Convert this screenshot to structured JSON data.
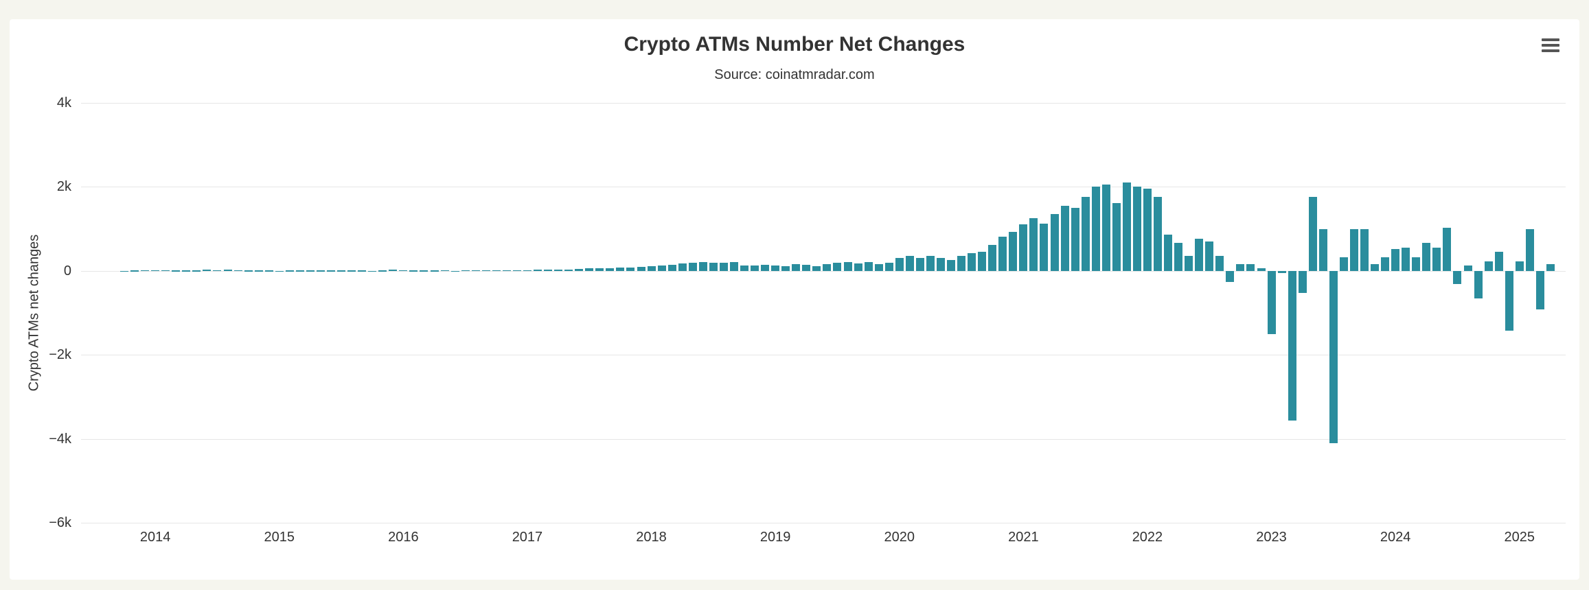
{
  "chart": {
    "title": "Crypto ATMs Number Net Changes",
    "subtitle": "Source: coinatmradar.com",
    "y_axis_title": "Crypto ATMs net changes"
  },
  "chart_data": {
    "type": "bar",
    "title": "Crypto ATMs Number Net Changes",
    "subtitle": "Source: coinatmradar.com",
    "xlabel": "",
    "ylabel": "Crypto ATMs net changes",
    "ylim": [
      -6000,
      4000
    ],
    "grid": true,
    "legend": "none",
    "colors": {
      "bar": "#2a8d9d",
      "grid": "#e6e6e6",
      "text": "#333333",
      "page_background": "#f5f5ee",
      "card_background": "#ffffff"
    },
    "y_ticks": [
      {
        "label": "4k",
        "value": 4000
      },
      {
        "label": "2k",
        "value": 2000
      },
      {
        "label": "0",
        "value": 0
      },
      {
        "label": "−2k",
        "value": -2000
      },
      {
        "label": "−4k",
        "value": -4000
      },
      {
        "label": "−6k",
        "value": -6000
      }
    ],
    "x_ticks": [
      {
        "label": "2014",
        "month": "2014-01"
      },
      {
        "label": "2015",
        "month": "2015-01"
      },
      {
        "label": "2016",
        "month": "2016-01"
      },
      {
        "label": "2017",
        "month": "2017-01"
      },
      {
        "label": "2018",
        "month": "2018-01"
      },
      {
        "label": "2019",
        "month": "2019-01"
      },
      {
        "label": "2020",
        "month": "2020-01"
      },
      {
        "label": "2021",
        "month": "2021-01"
      },
      {
        "label": "2022",
        "month": "2022-01"
      },
      {
        "label": "2023",
        "month": "2023-01"
      },
      {
        "label": "2024",
        "month": "2024-01"
      },
      {
        "label": "2025",
        "month": "2025-01"
      }
    ],
    "series_name": "Crypto ATMs net changes",
    "months": [
      "2013-10",
      "2013-11",
      "2013-12",
      "2014-01",
      "2014-02",
      "2014-03",
      "2014-04",
      "2014-05",
      "2014-06",
      "2014-07",
      "2014-08",
      "2014-09",
      "2014-10",
      "2014-11",
      "2014-12",
      "2015-01",
      "2015-02",
      "2015-03",
      "2015-04",
      "2015-05",
      "2015-06",
      "2015-07",
      "2015-08",
      "2015-09",
      "2015-10",
      "2015-11",
      "2015-12",
      "2016-01",
      "2016-02",
      "2016-03",
      "2016-04",
      "2016-05",
      "2016-06",
      "2016-07",
      "2016-08",
      "2016-09",
      "2016-10",
      "2016-11",
      "2016-12",
      "2017-01",
      "2017-02",
      "2017-03",
      "2017-04",
      "2017-05",
      "2017-06",
      "2017-07",
      "2017-08",
      "2017-09",
      "2017-10",
      "2017-11",
      "2017-12",
      "2018-01",
      "2018-02",
      "2018-03",
      "2018-04",
      "2018-05",
      "2018-06",
      "2018-07",
      "2018-08",
      "2018-09",
      "2018-10",
      "2018-11",
      "2018-12",
      "2019-01",
      "2019-02",
      "2019-03",
      "2019-04",
      "2019-05",
      "2019-06",
      "2019-07",
      "2019-08",
      "2019-09",
      "2019-10",
      "2019-11",
      "2019-12",
      "2020-01",
      "2020-02",
      "2020-03",
      "2020-04",
      "2020-05",
      "2020-06",
      "2020-07",
      "2020-08",
      "2020-09",
      "2020-10",
      "2020-11",
      "2020-12",
      "2021-01",
      "2021-02",
      "2021-03",
      "2021-04",
      "2021-05",
      "2021-06",
      "2021-07",
      "2021-08",
      "2021-09",
      "2021-10",
      "2021-11",
      "2021-12",
      "2022-01",
      "2022-02",
      "2022-03",
      "2022-04",
      "2022-05",
      "2022-06",
      "2022-07",
      "2022-08",
      "2022-09",
      "2022-10",
      "2022-11",
      "2022-12",
      "2023-01",
      "2023-02",
      "2023-03",
      "2023-04",
      "2023-05",
      "2023-06",
      "2023-07",
      "2023-08",
      "2023-09",
      "2023-10",
      "2023-11",
      "2023-12",
      "2024-01",
      "2024-02",
      "2024-03",
      "2024-04",
      "2024-05",
      "2024-06",
      "2024-07",
      "2024-08",
      "2024-09",
      "2024-10",
      "2024-11",
      "2024-12",
      "2025-01",
      "2025-02",
      "2025-03",
      "2025-04"
    ],
    "values": [
      4,
      6,
      8,
      10,
      8,
      6,
      5,
      5,
      35,
      8,
      30,
      8,
      6,
      5,
      5,
      -18,
      5,
      6,
      5,
      5,
      6,
      5,
      5,
      5,
      -15,
      6,
      30,
      8,
      6,
      5,
      6,
      8,
      -22,
      15,
      12,
      15,
      18,
      15,
      18,
      20,
      25,
      30,
      25,
      35,
      45,
      55,
      60,
      70,
      75,
      80,
      90,
      110,
      120,
      140,
      170,
      190,
      210,
      200,
      190,
      210,
      120,
      130,
      140,
      130,
      110,
      160,
      140,
      110,
      160,
      190,
      210,
      180,
      210,
      160,
      190,
      310,
      360,
      310,
      360,
      310,
      260,
      360,
      420,
      460,
      620,
      820,
      930,
      1110,
      1250,
      1120,
      1360,
      1550,
      1500,
      1760,
      2000,
      2060,
      1620,
      2100,
      2000,
      1950,
      1760,
      860,
      660,
      360,
      760,
      700,
      360,
      -260,
      160,
      160,
      60,
      -1500,
      -60,
      -3560,
      -520,
      1760,
      1000,
      -4100,
      320,
      1000,
      1000,
      160,
      320,
      520,
      560,
      320,
      660,
      560,
      1020,
      -320,
      120,
      -660,
      220,
      460,
      -1420,
      220,
      1000,
      -920,
      160
    ]
  }
}
